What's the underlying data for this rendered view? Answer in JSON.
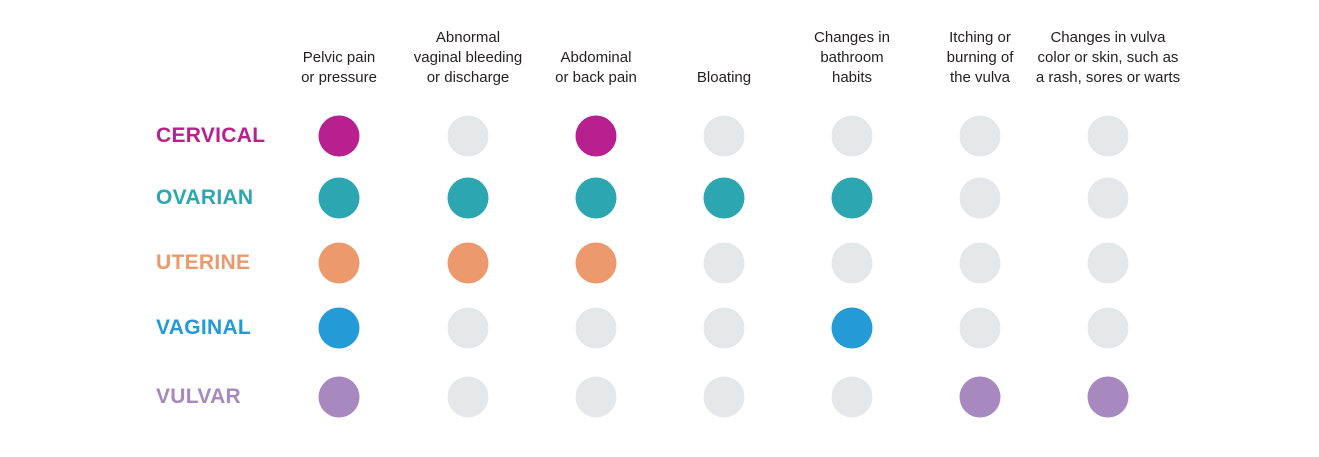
{
  "chart_data": {
    "type": "table",
    "title": "",
    "columns": [
      "Pelvic pain\nor pressure",
      "Abnormal\nvaginal bleeding\nor discharge",
      "Abdominal\nor back pain",
      "Bloating",
      "Changes in\nbathroom\nhabits",
      "Itching or\nburning of\nthe vulva",
      "Changes in vulva\ncolor or skin, such as\na rash, sores or warts"
    ],
    "rows": [
      {
        "label": "CERVICAL",
        "color": "#b81f8f",
        "values": [
          1,
          0,
          1,
          0,
          0,
          0,
          0
        ]
      },
      {
        "label": "OVARIAN",
        "color": "#2ca6b0",
        "values": [
          1,
          1,
          1,
          1,
          1,
          0,
          0
        ]
      },
      {
        "label": "UTERINE",
        "color": "#ec9a6d",
        "values": [
          1,
          1,
          1,
          0,
          0,
          0,
          0
        ]
      },
      {
        "label": "VAGINAL",
        "color": "#249bd6",
        "values": [
          1,
          0,
          0,
          0,
          1,
          0,
          0
        ]
      },
      {
        "label": "VULVAR",
        "color": "#a788bf",
        "values": [
          1,
          0,
          0,
          0,
          0,
          1,
          1
        ]
      }
    ],
    "inactive_color": "#e6e7e8"
  }
}
